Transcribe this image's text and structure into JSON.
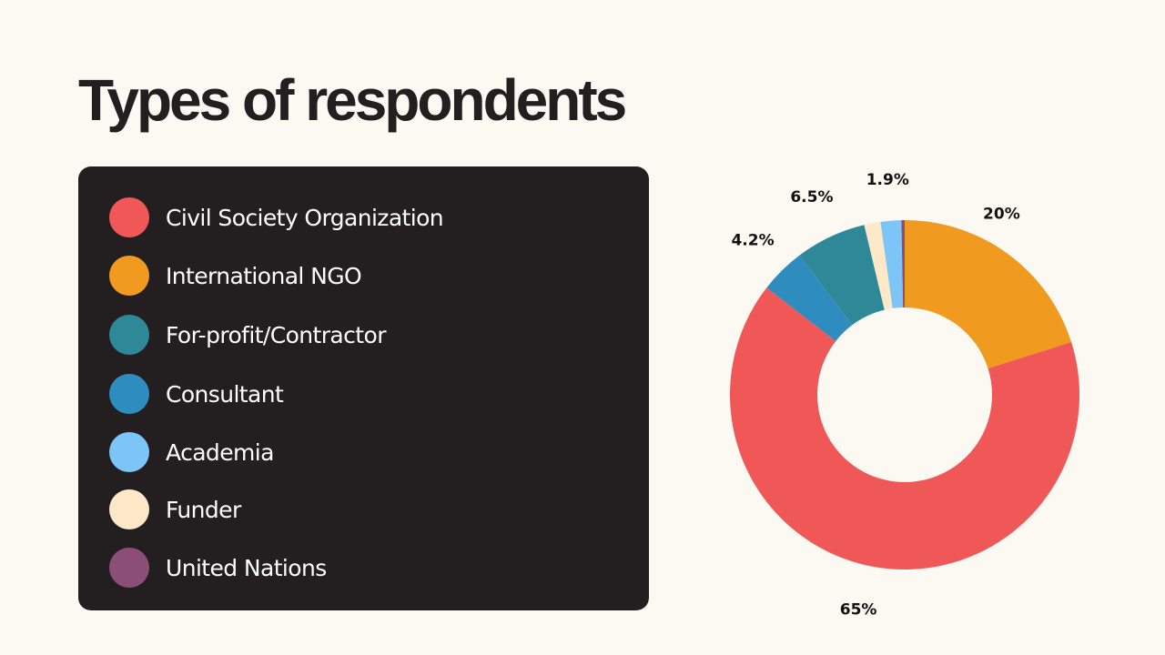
{
  "slide": {
    "title": "Types of respondents"
  },
  "legend": {
    "items": [
      {
        "label": "Civil Society Organization",
        "color": "#f05757"
      },
      {
        "label": "International NGO",
        "color": "#f19a20"
      },
      {
        "label": "For-profit/Contractor",
        "color": "#2e8898"
      },
      {
        "label": "Consultant",
        "color": "#2e8cbf"
      },
      {
        "label": "Academia",
        "color": "#7ec5f7"
      },
      {
        "label": "Funder",
        "color": "#fde8c8"
      },
      {
        "label": "United Nations",
        "color": "#8b4f77"
      }
    ]
  },
  "chart_data": {
    "type": "pie",
    "variant": "donut",
    "title": "",
    "categories": [
      "International NGO",
      "Civil Society Organization",
      "Consultant",
      "For-profit/Contractor",
      "Funder",
      "Academia",
      "United Nations"
    ],
    "values": [
      20,
      65,
      4.2,
      6.5,
      1.5,
      1.9,
      0.3
    ],
    "colors": [
      "#f19a20",
      "#f05757",
      "#2e8cbf",
      "#2e8898",
      "#fde8c8",
      "#7ec5f7",
      "#8b4f77"
    ],
    "data_labels": [
      "20%",
      "65%",
      "4.2%",
      "6.5%",
      "",
      "1.9%",
      ""
    ],
    "legend": "left"
  }
}
